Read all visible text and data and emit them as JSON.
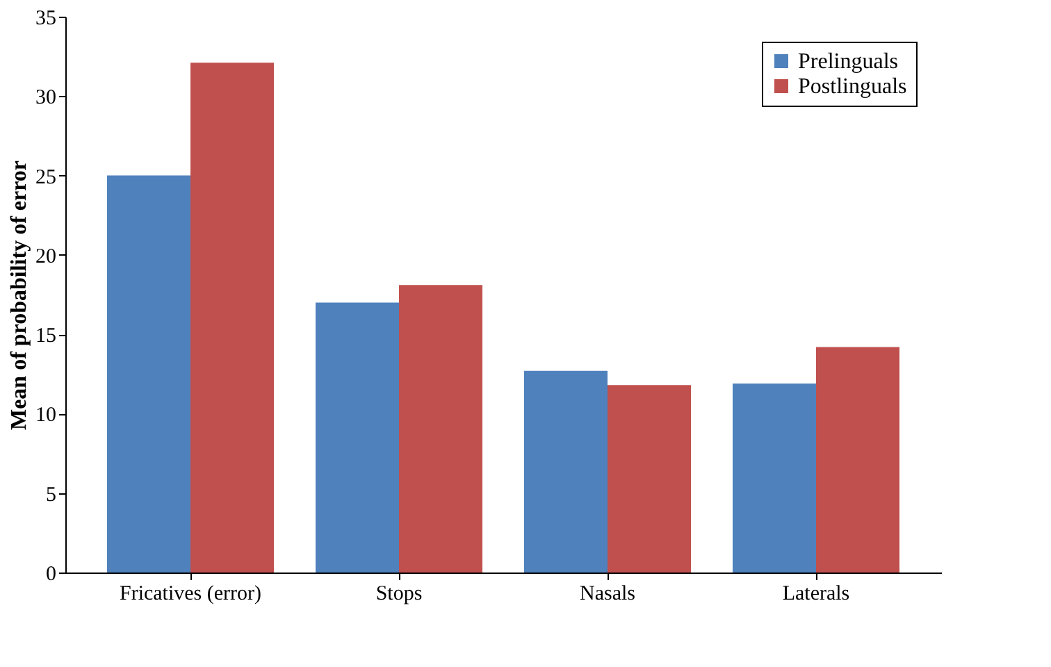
{
  "chart_data": {
    "type": "bar",
    "ylabel": "Mean of probability of error",
    "categories": [
      "Fricatives (error)",
      "Stops",
      "Nasals",
      "Laterals"
    ],
    "series": [
      {
        "name": "Prelinguals",
        "color": "#4f81bd",
        "values": [
          25,
          17,
          12.7,
          11.9
        ]
      },
      {
        "name": "Postlinguals",
        "color": "#c0504d",
        "values": [
          32.1,
          18.1,
          11.8,
          14.2
        ]
      }
    ],
    "ylim": [
      0,
      35
    ],
    "yticks": [
      0,
      5,
      10,
      15,
      20,
      25,
      30,
      35
    ],
    "grid": false,
    "legend": "top right"
  }
}
